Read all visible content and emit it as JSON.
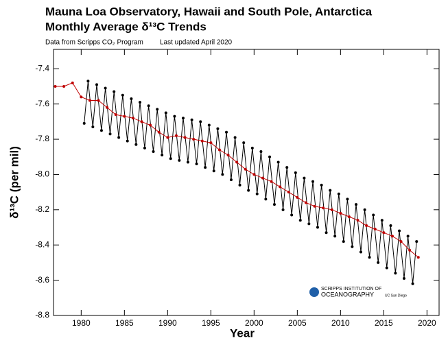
{
  "chart_data": {
    "type": "line",
    "title": "Mauna Loa Observatory, Hawaii and South Pole, Antarctica",
    "subtitle": "Monthly Average δ¹³C Trends",
    "note": "Data from Scripps CO₂ Program",
    "updated": "Last updated April 2020",
    "x_label": "Year",
    "y_label": "δ¹³C (per mil)",
    "logo": [
      "SCRIPPS INSTITUTION OF",
      "OCEANOGRAPHY",
      "UC San Diego"
    ],
    "xlim": [
      1976.8,
      2021.4
    ],
    "ylim": [
      -8.8,
      -7.29
    ],
    "xticks": [
      1980,
      1985,
      1990,
      1995,
      2000,
      2005,
      2010,
      2015,
      2020
    ],
    "yticks": [
      -7.4,
      -7.6,
      -7.8,
      {
        "value": -8,
        "label": "-8.0"
      },
      -8.2,
      -8.4,
      -8.6,
      -8.8
    ],
    "series": [
      {
        "color": "#000000",
        "x": [
          1980.35,
          1980.8,
          1981.35,
          1981.8,
          1982.35,
          1982.8,
          1983.35,
          1983.8,
          1984.35,
          1984.8,
          1985.35,
          1985.8,
          1986.35,
          1986.8,
          1987.35,
          1987.8,
          1988.35,
          1988.8,
          1989.35,
          1989.8,
          1990.35,
          1990.8,
          1991.35,
          1991.8,
          1992.35,
          1992.8,
          1993.35,
          1993.8,
          1994.35,
          1994.8,
          1995.35,
          1995.8,
          1996.35,
          1996.8,
          1997.35,
          1997.8,
          1998.35,
          1998.8,
          1999.35,
          1999.8,
          2000.35,
          2000.8,
          2001.35,
          2001.8,
          2002.35,
          2002.8,
          2003.35,
          2003.8,
          2004.35,
          2004.8,
          2005.35,
          2005.8,
          2006.35,
          2006.8,
          2007.35,
          2007.8,
          2008.35,
          2008.8,
          2009.35,
          2009.8,
          2010.35,
          2010.8,
          2011.35,
          2011.8,
          2012.35,
          2012.8,
          2013.35,
          2013.8,
          2014.35,
          2014.8,
          2015.35,
          2015.8,
          2016.35,
          2016.8,
          2017.35,
          2017.8,
          2018.35,
          2018.8
        ],
        "values": [
          -7.71,
          -7.47,
          -7.73,
          -7.49,
          -7.75,
          -7.51,
          -7.77,
          -7.53,
          -7.79,
          -7.55,
          -7.81,
          -7.57,
          -7.83,
          -7.59,
          -7.85,
          -7.61,
          -7.87,
          -7.63,
          -7.89,
          -7.65,
          -7.91,
          -7.67,
          -7.92,
          -7.68,
          -7.93,
          -7.69,
          -7.94,
          -7.7,
          -7.96,
          -7.72,
          -7.98,
          -7.74,
          -8.0,
          -7.76,
          -8.03,
          -7.79,
          -8.06,
          -7.82,
          -8.09,
          -7.85,
          -8.11,
          -7.87,
          -8.14,
          -7.9,
          -8.17,
          -7.93,
          -8.2,
          -7.96,
          -8.23,
          -7.99,
          -8.26,
          -8.02,
          -8.28,
          -8.04,
          -8.3,
          -8.06,
          -8.33,
          -8.09,
          -8.35,
          -8.11,
          -8.38,
          -8.14,
          -8.41,
          -8.17,
          -8.44,
          -8.2,
          -8.47,
          -8.23,
          -8.5,
          -8.26,
          -8.53,
          -8.29,
          -8.56,
          -8.32,
          -8.59,
          -8.35,
          -8.62,
          -8.38
        ]
      },
      {
        "color": "#c00000",
        "x": [
          1977,
          1978,
          1979,
          1980,
          1981,
          1982,
          1983,
          1984,
          1985,
          1986,
          1987,
          1988,
          1989,
          1990,
          1991,
          1992,
          1993,
          1994,
          1995,
          1996,
          1997,
          1998,
          1999,
          2000,
          2001,
          2002,
          2003,
          2004,
          2005,
          2006,
          2007,
          2008,
          2009,
          2010,
          2011,
          2012,
          2013,
          2014,
          2015,
          2016,
          2017,
          2018,
          2019
        ],
        "values": [
          -7.5,
          -7.5,
          -7.48,
          -7.56,
          -7.58,
          -7.58,
          -7.62,
          -7.66,
          -7.67,
          -7.68,
          -7.7,
          -7.72,
          -7.76,
          -7.79,
          -7.78,
          -7.79,
          -7.8,
          -7.81,
          -7.82,
          -7.86,
          -7.89,
          -7.93,
          -7.97,
          -8.0,
          -8.02,
          -8.04,
          -8.07,
          -8.1,
          -8.13,
          -8.16,
          -8.18,
          -8.19,
          -8.2,
          -8.22,
          -8.24,
          -8.26,
          -8.29,
          -8.31,
          -8.33,
          -8.35,
          -8.38,
          -8.43,
          -8.47
        ]
      }
    ]
  }
}
